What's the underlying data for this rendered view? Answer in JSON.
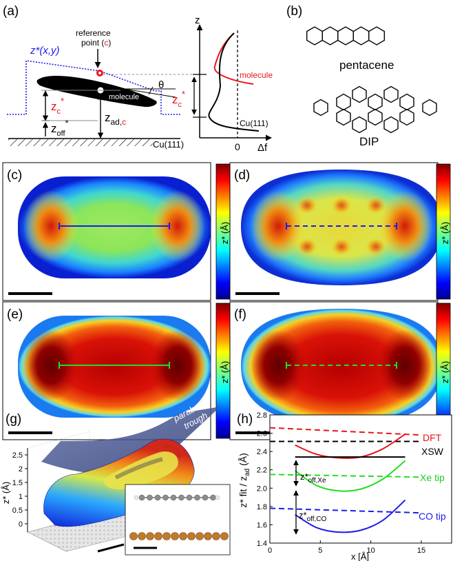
{
  "panels": {
    "a": {
      "label": "(a)",
      "ref_point_line1": "reference",
      "ref_point_line2_prefix": "point (",
      "ref_point_c": "c",
      "ref_point_close": ")",
      "zstar_xy": "z*(x,y)",
      "molecule": "molecule",
      "zc_star": "z",
      "zc_sub": "c",
      "zoff_star": "z",
      "zoff_sub": "off",
      "zad": "z",
      "zad_sub_ad": "ad,",
      "zad_sub_c": "c",
      "theta": "θ",
      "substrate": "Cu(111)",
      "axis_z": "z",
      "axis_df": "Δf",
      "zero": "0",
      "curve_molecule": "molecule",
      "curve_substrate": "Cu(111)"
    },
    "b": {
      "label": "(b)",
      "mol1": "pentacene",
      "mol2": "DIP"
    },
    "maps": [
      {
        "label": "(c)",
        "shape": "pentacene",
        "tip": "co",
        "marker": "solid"
      },
      {
        "label": "(d)",
        "shape": "dip",
        "tip": "co",
        "marker": "dashed"
      },
      {
        "label": "(e)",
        "shape": "pentacene",
        "tip": "xe",
        "marker": "solid"
      },
      {
        "label": "(f)",
        "shape": "dip",
        "tip": "xe",
        "marker": "dashed"
      }
    ],
    "colorbar": {
      "label": "z* (Å)",
      "ticks": [
        "2",
        "1.5",
        "1"
      ]
    },
    "g": {
      "label": "(g)",
      "trough_line1": "parabolic",
      "trough_line2": "trough",
      "zaxis": "z* (Å)",
      "zticks": [
        "2.5",
        "2",
        "1.5",
        "1",
        "0.5",
        "0"
      ]
    },
    "h": {
      "label": "(h)",
      "ylabel": "z* fit / z",
      "ylabel_sub": "ad",
      "ylabel_unit": " (Å)",
      "xlabel": "x [Å]",
      "leg_dft": "DFT",
      "leg_xsw": "XSW",
      "leg_xe": "Xe tip",
      "leg_co": "CO tip",
      "zoff_xe": "z*",
      "zoff_xe_sub": "off,Xe",
      "zoff_co": "z*",
      "zoff_co_sub": "off,CO",
      "colors": {
        "dft": "#e8141b",
        "xsw": "#000000",
        "xe": "#22dd22",
        "co": "#1a1aee"
      }
    }
  },
  "chart_data": {
    "type": "line",
    "xlabel": "x [Å]",
    "ylabel": "z* fit / z ad (Å)",
    "xlim": [
      0,
      18
    ],
    "ylim": [
      1.4,
      2.8
    ],
    "xticks": [
      0,
      5,
      10,
      15
    ],
    "yticks": [
      1.4,
      1.6,
      1.8,
      2.0,
      2.2,
      2.4,
      2.6,
      2.8
    ],
    "series": [
      {
        "name": "DFT",
        "style": "dashed",
        "x": [
          0,
          15
        ],
        "y": [
          2.66,
          2.58
        ]
      },
      {
        "name": "XSW",
        "style": "dashed",
        "x": [
          0,
          15
        ],
        "y": [
          2.51,
          2.51
        ]
      },
      {
        "name": "Xe tip",
        "style": "dashed",
        "x": [
          0,
          15
        ],
        "y": [
          2.15,
          2.12
        ]
      },
      {
        "name": "CO tip",
        "style": "dashed",
        "x": [
          0,
          15
        ],
        "y": [
          1.78,
          1.73
        ]
      },
      {
        "name": "DFT",
        "style": "solid",
        "x": [
          2.5,
          4.6,
          6.8,
          9.0,
          11.2,
          13.4
        ],
        "y": [
          2.47,
          2.37,
          2.33,
          2.34,
          2.43,
          2.59
        ]
      },
      {
        "name": "Xe tip",
        "style": "solid",
        "x": [
          2.5,
          4.6,
          6.8,
          9.0,
          11.2,
          13.4
        ],
        "y": [
          2.19,
          2.03,
          1.97,
          1.99,
          2.1,
          2.3
        ]
      },
      {
        "name": "CO tip",
        "style": "solid",
        "x": [
          2.5,
          4.6,
          6.8,
          9.0,
          11.2,
          13.4
        ],
        "y": [
          1.71,
          1.57,
          1.52,
          1.54,
          1.65,
          1.87
        ]
      },
      {
        "name": "XSW",
        "style": "solid",
        "x": [
          2.5,
          13.4
        ],
        "y": [
          2.34,
          2.34
        ]
      }
    ]
  }
}
